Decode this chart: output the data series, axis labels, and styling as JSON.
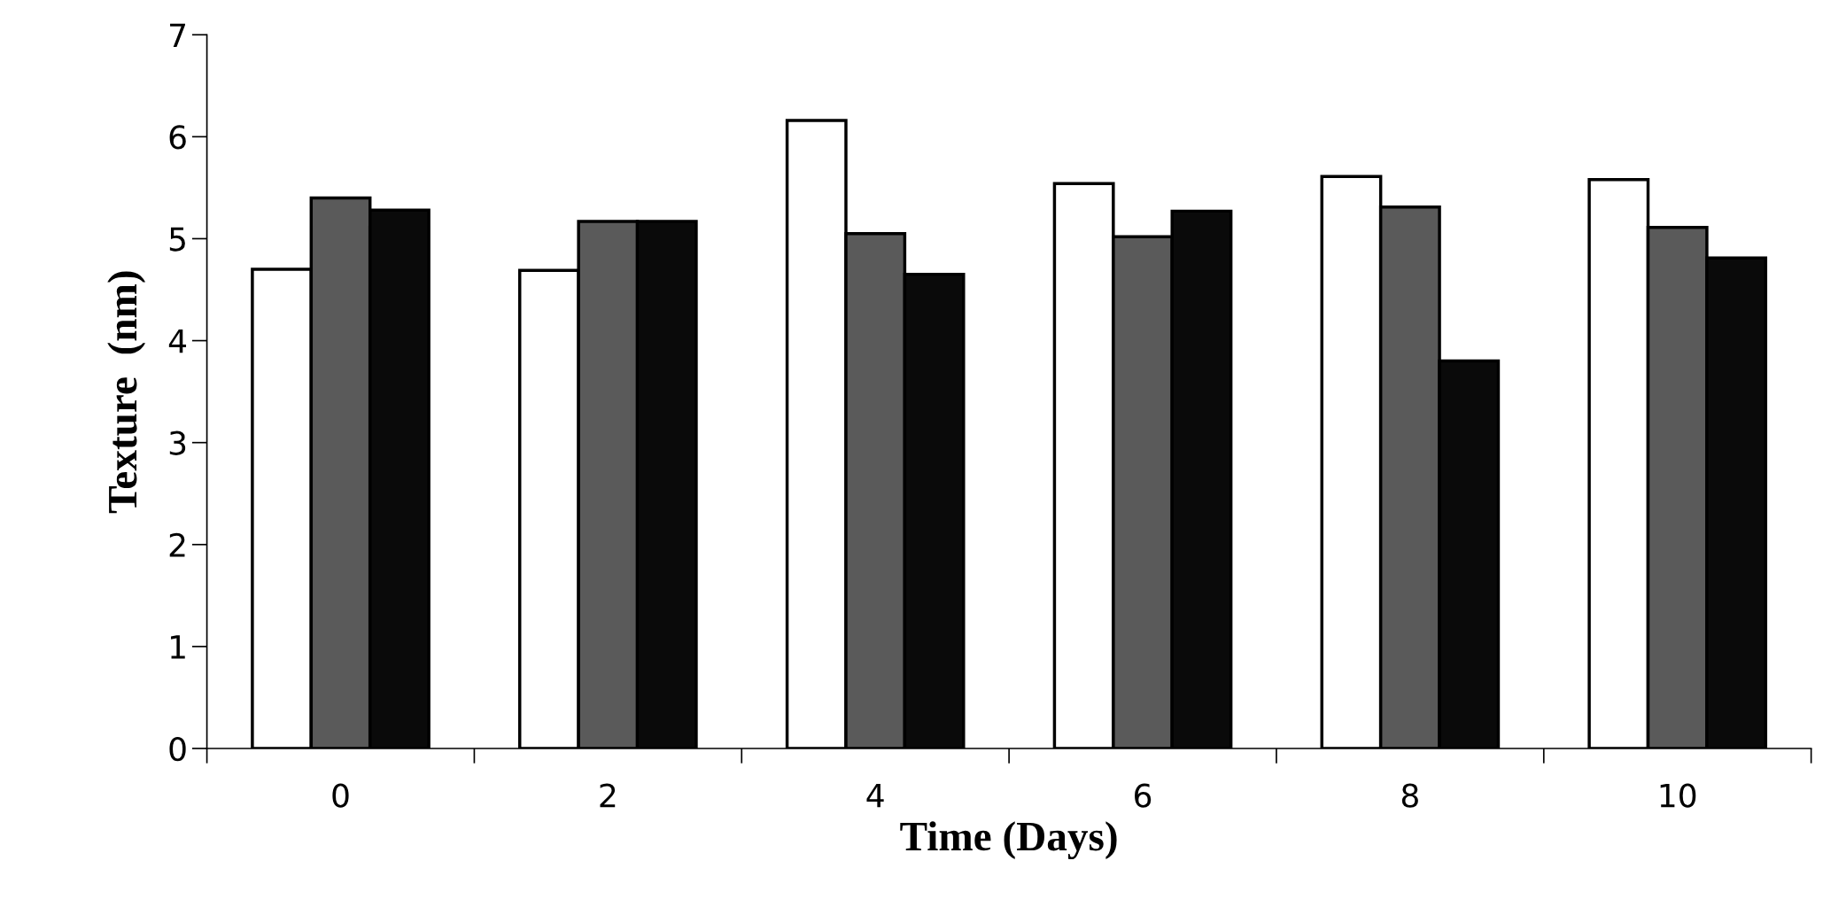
{
  "chart_data": {
    "type": "bar",
    "xlabel": "Time (Days)",
    "ylabel": "Texture  (nm)",
    "categories": [
      "0",
      "2",
      "4",
      "6",
      "8",
      "10"
    ],
    "series": [
      {
        "color": "#ffffff",
        "values": [
          4.7,
          4.69,
          6.16,
          5.54,
          5.61,
          5.58
        ]
      },
      {
        "color": "#5a5a5a",
        "values": [
          5.4,
          5.17,
          5.05,
          5.02,
          5.31,
          5.11
        ]
      },
      {
        "color": "#0a0a0a",
        "values": [
          5.28,
          5.17,
          4.65,
          5.27,
          3.8,
          4.81
        ]
      }
    ],
    "ylim": [
      0,
      7
    ],
    "yticks": [
      0,
      1,
      2,
      3,
      4,
      5,
      6,
      7
    ],
    "grid": false,
    "legend": false
  }
}
